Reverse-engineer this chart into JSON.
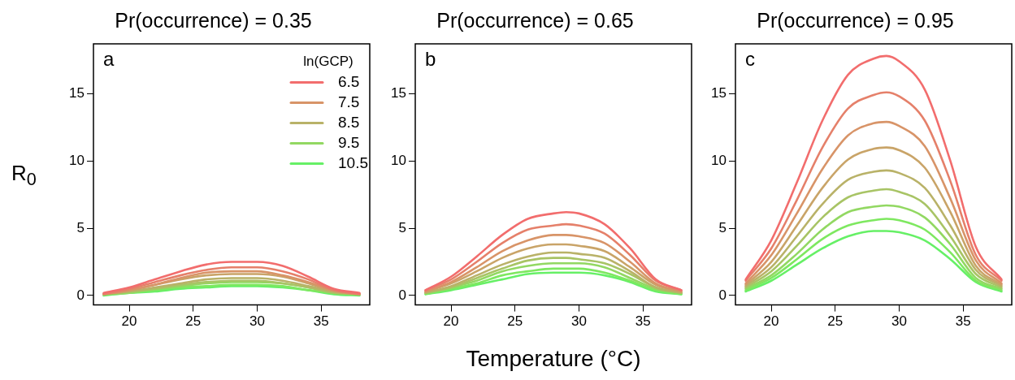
{
  "chart_data": [
    {
      "type": "line",
      "title": "Pr(occurrence) = 0.35",
      "ylabel": "R$_{0}$",
      "legend_title": "ln(GCP)",
      "legend": "top right",
      "annotations": [
        "a"
      ],
      "x": [
        18,
        20,
        22,
        24,
        26,
        28,
        29,
        30,
        32,
        34,
        36,
        38
      ],
      "xlim": [
        17.2,
        38.8
      ],
      "ylim": [
        -0.7,
        18.7
      ],
      "xticks": [
        20,
        25,
        30,
        35
      ],
      "yticks": [
        0,
        5,
        10,
        15
      ],
      "series": [
        {
          "name": "6.5",
          "color": "#f26d6d",
          "values": [
            0.2,
            0.6,
            1.2,
            1.8,
            2.3,
            2.5,
            2.5,
            2.5,
            2.2,
            1.4,
            0.5,
            0.2
          ]
        },
        {
          "color": "#e5806a",
          "values": [
            0.1,
            0.5,
            1.0,
            1.5,
            1.9,
            2.1,
            2.1,
            2.1,
            1.8,
            1.2,
            0.4,
            0.1
          ]
        },
        {
          "name": "7.5",
          "color": "#d89468",
          "values": [
            0.1,
            0.4,
            0.8,
            1.3,
            1.7,
            1.8,
            1.8,
            1.8,
            1.5,
            1.0,
            0.4,
            0.1
          ]
        },
        {
          "color": "#c9a468",
          "values": [
            0.1,
            0.4,
            0.8,
            1.2,
            1.5,
            1.6,
            1.6,
            1.6,
            1.4,
            0.9,
            0.3,
            0.1
          ]
        },
        {
          "name": "8.5",
          "color": "#b9b268",
          "values": [
            0.1,
            0.3,
            0.6,
            0.9,
            1.2,
            1.3,
            1.3,
            1.3,
            1.1,
            0.7,
            0.3,
            0.1
          ]
        },
        {
          "color": "#a8c465",
          "values": [
            0.1,
            0.3,
            0.5,
            0.8,
            1.0,
            1.1,
            1.1,
            1.1,
            0.9,
            0.6,
            0.2,
            0.1
          ]
        },
        {
          "name": "9.5",
          "color": "#92d862",
          "values": [
            0.1,
            0.2,
            0.5,
            0.7,
            0.9,
            1.0,
            1.0,
            1.0,
            0.9,
            0.6,
            0.2,
            0.1
          ]
        },
        {
          "color": "#7ee860",
          "values": [
            0.1,
            0.2,
            0.4,
            0.6,
            0.7,
            0.8,
            0.8,
            0.8,
            0.7,
            0.4,
            0.2,
            0.1
          ]
        },
        {
          "name": "10.5",
          "color": "#66f066",
          "values": [
            0.0,
            0.2,
            0.3,
            0.5,
            0.6,
            0.7,
            0.7,
            0.7,
            0.6,
            0.4,
            0.1,
            0.0
          ]
        }
      ]
    },
    {
      "type": "line",
      "title": "Pr(occurrence) = 0.65",
      "xlabel": "Temperature (°C)",
      "annotations": [
        "b"
      ],
      "x": [
        18,
        20,
        22,
        24,
        26,
        28,
        29,
        30,
        32,
        34,
        36,
        38
      ],
      "xlim": [
        17.2,
        38.8
      ],
      "ylim": [
        -0.7,
        18.7
      ],
      "xticks": [
        20,
        25,
        30,
        35
      ],
      "yticks": [
        0,
        5,
        10,
        15
      ],
      "series": [
        {
          "color": "#f26d6d",
          "values": [
            0.4,
            1.4,
            2.9,
            4.5,
            5.7,
            6.1,
            6.2,
            6.1,
            5.3,
            3.5,
            1.2,
            0.4
          ]
        },
        {
          "color": "#e5806a",
          "values": [
            0.4,
            1.2,
            2.5,
            3.9,
            4.9,
            5.2,
            5.3,
            5.2,
            4.6,
            3.0,
            1.1,
            0.4
          ]
        },
        {
          "color": "#d89468",
          "values": [
            0.3,
            1.0,
            2.1,
            3.3,
            4.1,
            4.5,
            4.5,
            4.4,
            3.9,
            2.5,
            0.9,
            0.3
          ]
        },
        {
          "color": "#c9a468",
          "values": [
            0.3,
            0.9,
            1.8,
            2.8,
            3.5,
            3.8,
            3.8,
            3.7,
            3.3,
            2.1,
            0.8,
            0.3
          ]
        },
        {
          "color": "#b9b268",
          "values": [
            0.2,
            0.7,
            1.5,
            2.3,
            2.9,
            3.2,
            3.2,
            3.1,
            2.8,
            1.8,
            0.6,
            0.2
          ]
        },
        {
          "color": "#a8c465",
          "values": [
            0.2,
            0.6,
            1.3,
            2.0,
            2.6,
            2.8,
            2.8,
            2.7,
            2.4,
            1.6,
            0.6,
            0.2
          ]
        },
        {
          "color": "#92d862",
          "values": [
            0.2,
            0.6,
            1.1,
            1.8,
            2.2,
            2.4,
            2.4,
            2.4,
            2.1,
            1.3,
            0.5,
            0.2
          ]
        },
        {
          "color": "#7ee860",
          "values": [
            0.1,
            0.5,
            0.9,
            1.5,
            1.8,
            2.0,
            2.0,
            2.0,
            1.7,
            1.1,
            0.4,
            0.1
          ]
        },
        {
          "color": "#66f066",
          "values": [
            0.1,
            0.4,
            0.8,
            1.2,
            1.6,
            1.7,
            1.7,
            1.7,
            1.5,
            1.0,
            0.3,
            0.1
          ]
        }
      ]
    },
    {
      "type": "line",
      "title": "Pr(occurrence) = 0.95",
      "annotations": [
        "c"
      ],
      "x": [
        18,
        20,
        22,
        24,
        26,
        28,
        29,
        30,
        32,
        34,
        36,
        38
      ],
      "xlim": [
        17.2,
        38.8
      ],
      "ylim": [
        -0.7,
        18.7
      ],
      "xticks": [
        20,
        25,
        30,
        35
      ],
      "yticks": [
        0,
        5,
        10,
        15
      ],
      "series": [
        {
          "color": "#f26d6d",
          "values": [
            1.2,
            4.1,
            8.4,
            13.0,
            16.4,
            17.6,
            17.8,
            17.4,
            15.3,
            10.0,
            3.6,
            1.2
          ]
        },
        {
          "color": "#e5806a",
          "values": [
            1.1,
            3.5,
            7.1,
            11.0,
            13.9,
            14.9,
            15.1,
            14.8,
            13.0,
            8.5,
            3.0,
            1.1
          ]
        },
        {
          "color": "#d89468",
          "values": [
            0.9,
            3.0,
            6.1,
            9.4,
            11.9,
            12.8,
            12.9,
            12.6,
            11.1,
            7.2,
            2.6,
            0.9
          ]
        },
        {
          "color": "#c9a468",
          "values": [
            0.8,
            2.5,
            5.2,
            8.0,
            10.1,
            10.9,
            11.0,
            10.8,
            9.5,
            6.2,
            2.2,
            0.8
          ]
        },
        {
          "color": "#b9b268",
          "values": [
            0.7,
            2.1,
            4.4,
            6.8,
            8.6,
            9.2,
            9.3,
            9.1,
            8.0,
            5.2,
            1.9,
            0.7
          ]
        },
        {
          "color": "#a8c465",
          "values": [
            0.6,
            1.8,
            3.7,
            5.8,
            7.3,
            7.8,
            7.9,
            7.7,
            6.8,
            4.4,
            1.6,
            0.6
          ]
        },
        {
          "color": "#92d862",
          "values": [
            0.5,
            1.5,
            3.1,
            4.9,
            6.2,
            6.6,
            6.7,
            6.6,
            5.8,
            3.8,
            1.3,
            0.5
          ]
        },
        {
          "color": "#7ee860",
          "values": [
            0.4,
            1.3,
            2.7,
            4.2,
            5.2,
            5.6,
            5.7,
            5.6,
            4.9,
            3.2,
            1.1,
            0.4
          ]
        },
        {
          "color": "#66f066",
          "values": [
            0.3,
            1.1,
            2.3,
            3.5,
            4.4,
            4.8,
            4.8,
            4.7,
            4.1,
            2.7,
            1.0,
            0.3
          ]
        }
      ]
    }
  ]
}
